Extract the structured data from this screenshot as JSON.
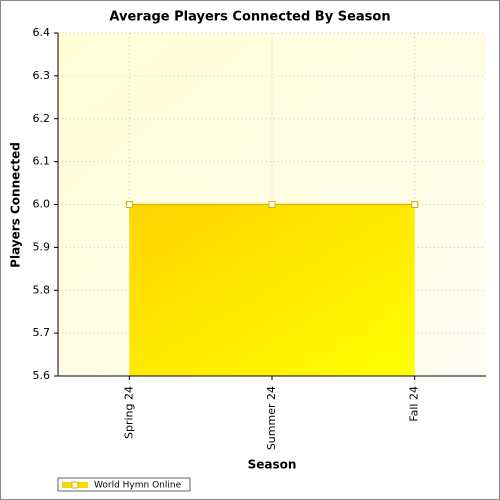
{
  "chart_data": {
    "type": "area",
    "title": "Average Players Connected By Season",
    "x_label": "Season",
    "y_label": "Players Connected",
    "categories": [
      "Spring 24",
      "Summer 24",
      "Fall 24"
    ],
    "series": [
      {
        "name": "World Hymn Online",
        "color": "#ffd700",
        "values": [
          6,
          6,
          6
        ]
      }
    ],
    "ylim": [
      5.6,
      6.4
    ],
    "yticks": [
      5.6,
      5.7,
      5.8,
      5.9,
      {
        "value": 6,
        "label": "6.0"
      },
      6.1,
      6.2,
      6.3,
      6.4
    ],
    "grid": true,
    "legend": "bottom-left"
  }
}
